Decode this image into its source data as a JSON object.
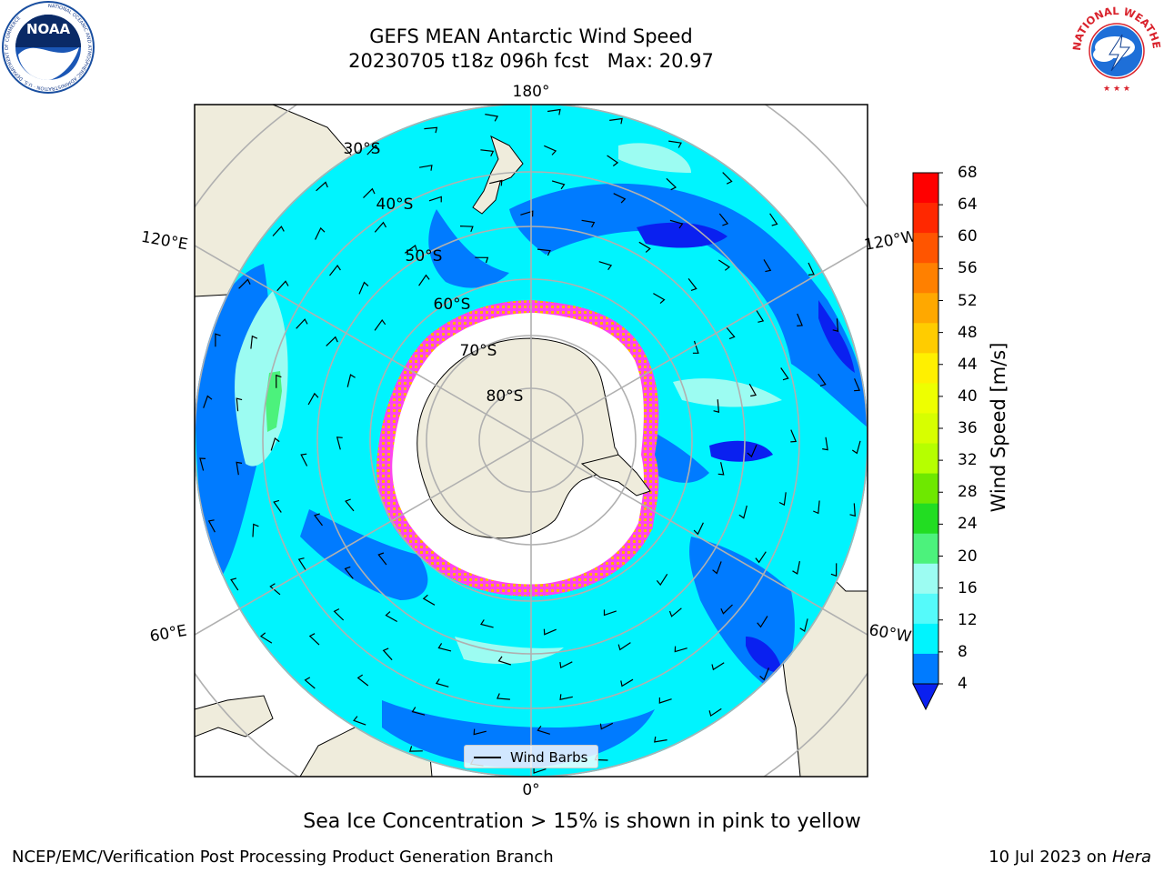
{
  "header": {
    "title_line1": "GEFS MEAN Antarctic Wind Speed",
    "title_line2": "20230705 t18z 096h fcst   Max: 20.97"
  },
  "logos": {
    "noaa": {
      "text": "NOAA",
      "ring_text": "NATIONAL OCEANIC AND ATMOSPHERIC ADMINISTRATION · U.S. DEPARTMENT OF COMMERCE"
    },
    "nws": {
      "ring_text": "NATIONAL WEATHER SERVICE"
    }
  },
  "map": {
    "projection": "south-polar-stereographic",
    "longitude_labels": {
      "top": "180°",
      "bottom": "0°",
      "left_upper": "120°E",
      "left_lower": "60°E",
      "right_upper": "120°W",
      "right_lower": "60°W"
    },
    "latitude_labels": [
      "30°S",
      "40°S",
      "50°S",
      "60°S",
      "70°S",
      "80°S"
    ],
    "colors": {
      "land": "#efecdc",
      "ice": "#ffffff",
      "ice_edge": "#ff44ee",
      "ice_edge_outer": "#ffb000",
      "grid": "#b0b0b0"
    }
  },
  "legend": {
    "label": "Wind Barbs"
  },
  "colorbar": {
    "label": "Wind Speed [m/s]",
    "ticks": [
      "68",
      "64",
      "60",
      "56",
      "52",
      "48",
      "44",
      "40",
      "36",
      "32",
      "28",
      "24",
      "20",
      "16",
      "12",
      "8",
      "4"
    ],
    "colors_top_to_bottom": [
      "#ff0000",
      "#ff2800",
      "#ff5500",
      "#ff8000",
      "#ffa800",
      "#ffcc00",
      "#fff000",
      "#eeff00",
      "#d7ff00",
      "#b6ff00",
      "#6ee800",
      "#22dd22",
      "#4cf27c",
      "#9cfcf2",
      "#55fafa",
      "#00f4fe",
      "#007bff"
    ],
    "under_color": "#0a20f0"
  },
  "caption": "Sea Ice Concentration > 15% is shown in pink to yellow",
  "footer": {
    "left": "NCEP/EMC/Verification Post Processing Product Generation Branch",
    "right_prefix": "10 Jul 2023 on ",
    "right_host": "Hera"
  }
}
